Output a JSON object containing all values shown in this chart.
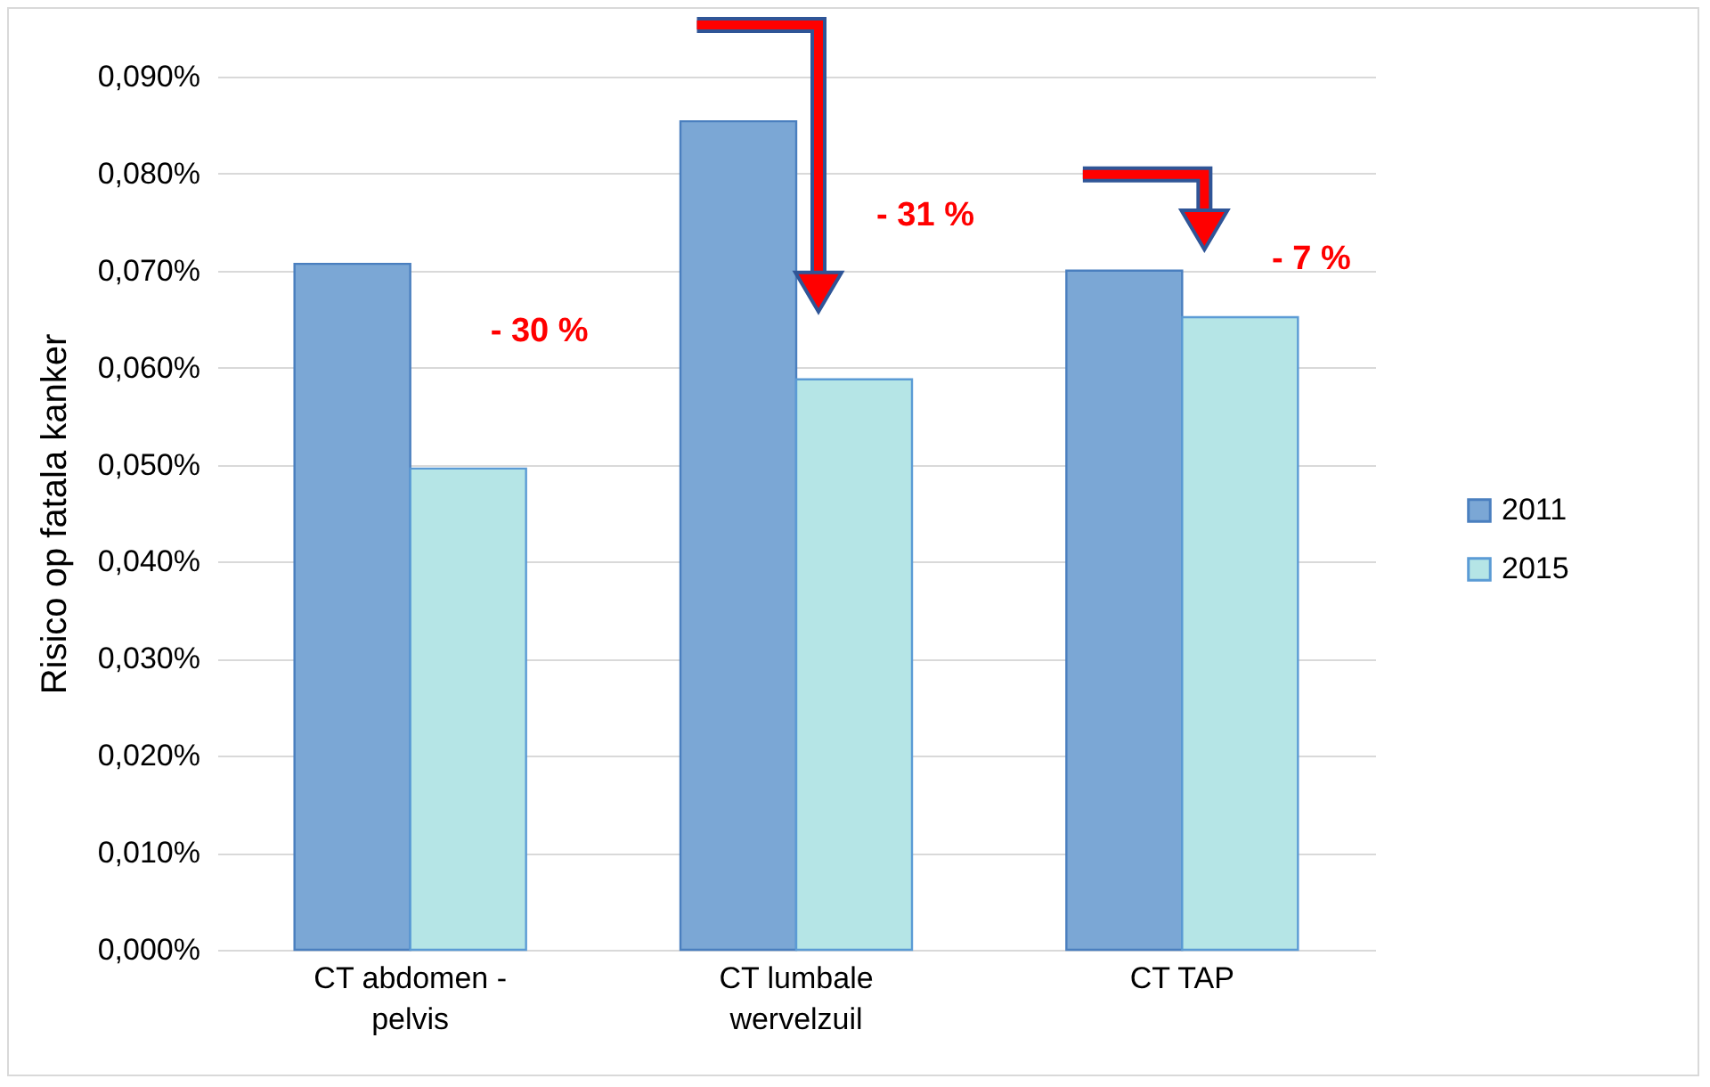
{
  "chart_data": {
    "type": "bar",
    "ylabel": "Risico op fatala kanker",
    "categories": [
      "CT abdomen - pelvis",
      "CT lumbale wervelzuil",
      "CT TAP"
    ],
    "series": [
      {
        "name": "2011",
        "color": "#7ba7d5",
        "values": [
          0.0707,
          0.0854,
          0.07
        ]
      },
      {
        "name": "2015",
        "color": "#b5e5e6",
        "values": [
          0.0496,
          0.0588,
          0.0652
        ]
      }
    ],
    "ylim": [
      0,
      0.09
    ],
    "yticks": [
      {
        "value": 0,
        "label": "0,000%"
      },
      {
        "value": 0.01,
        "label": "0,010%"
      },
      {
        "value": 0.02,
        "label": "0,020%"
      },
      {
        "value": 0.03,
        "label": "0,030%"
      },
      {
        "value": 0.04,
        "label": "0,040%"
      },
      {
        "value": 0.05,
        "label": "0,050%"
      },
      {
        "value": 0.06,
        "label": "0,060%"
      },
      {
        "value": 0.07,
        "label": "0,070%"
      },
      {
        "value": 0.08,
        "label": "0,080%"
      },
      {
        "value": 0.09,
        "label": "0,090%"
      }
    ],
    "annotations": [
      "- 30 %",
      "- 31 %",
      "- 7 %"
    ],
    "grid": "y",
    "legend": "right"
  }
}
